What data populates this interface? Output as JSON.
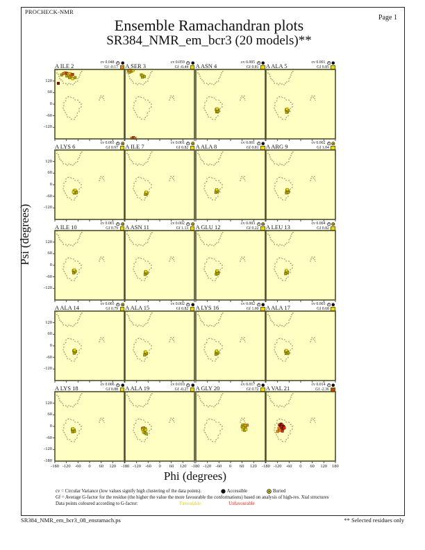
{
  "page": {
    "app": "PROCHECK-NMR",
    "page_label": "Page 1",
    "title": "Ensemble Ramachandran plots",
    "subtitle": "SR384_NMR_em_bcr3 (20 models)**",
    "footer_left": "SR384_NMR_em_bcr3_08_ensramach.ps",
    "footer_right": "** Selected residues only"
  },
  "axes": {
    "xlabel": "Phi (degrees)",
    "ylabel": "Psi (degrees)",
    "x_ticks": [
      -180,
      -120,
      -60,
      0,
      60,
      120
    ],
    "x_end_tick": 180,
    "y_ticks": [
      120,
      60,
      0,
      -60,
      -120
    ],
    "y_end_tick": -180
  },
  "legend": {
    "line1": "cv = Circular Variance (low values signify high clustering of the data points).",
    "accessible_label": "Accessible",
    "buried_label": "Buried",
    "line2": "Gf = Average G-factor for the residue (the higher the value the more favourable the conformations)  based on analysis of high-res. Xtal structures",
    "line3_prefix": "Data points coloured according to G-factor:",
    "favourable_label": "Favourable",
    "unfavourable_label": "Unfavourable"
  },
  "colors": {
    "plot_bg": "#ffffc4",
    "plot_border": "#4e4e28",
    "contour": "#6e6e48",
    "favourable_square": "#f0dc00",
    "mid_square": "#e8821e",
    "unfavourable_square": "#d2351a",
    "point_palette": {
      "f1": {
        "fill": "#f0dc00",
        "stroke": "#8a7d00"
      },
      "f2": {
        "fill": "#b3a800",
        "stroke": "#6d6400"
      },
      "u1": {
        "fill": "#e8821e",
        "stroke": "#9c4f00"
      },
      "u2": {
        "fill": "#d2351a",
        "stroke": "#7e1c08"
      },
      "u3": {
        "fill": "#8f1208",
        "stroke": "#55070a"
      }
    }
  },
  "chart_data": {
    "type": "scatter",
    "phi_range": [
      -180,
      180
    ],
    "psi_range": [
      -180,
      180
    ],
    "grid": {
      "rows": 5,
      "cols": 4
    },
    "subplots": [
      {
        "label": "A ILE 2",
        "cv": "0.048",
        "gf": "-0.17",
        "access": "accessible",
        "gf_color": "mid",
        "points": [
          [
            -145,
            152,
            "f2"
          ],
          [
            -136,
            158,
            "u1"
          ],
          [
            -127,
            162,
            "u1"
          ],
          [
            -118,
            160,
            "u2"
          ],
          [
            -110,
            154,
            "f1"
          ],
          [
            -102,
            158,
            "f1"
          ],
          [
            -95,
            150,
            "u1"
          ],
          [
            -88,
            154,
            "u2"
          ],
          [
            -96,
            142,
            "u1"
          ],
          [
            -118,
            146,
            "f2"
          ],
          [
            -104,
            138,
            "f2"
          ],
          [
            -88,
            132,
            "f1"
          ],
          [
            -75,
            138,
            "f2"
          ],
          [
            -162,
            108,
            "u3"
          ]
        ]
      },
      {
        "label": "A SER 3",
        "cv": "0.059",
        "gf": "-0.44",
        "access": "accessible",
        "gf_color": "favourable",
        "points": [
          [
            -163,
            174,
            "u1"
          ],
          [
            -154,
            177,
            "f1"
          ],
          [
            -146,
            171,
            "u1"
          ],
          [
            -156,
            166,
            "f2"
          ],
          [
            -138,
            175,
            "f1"
          ],
          [
            -95,
            152,
            "f2"
          ],
          [
            -87,
            148,
            "f1"
          ],
          [
            -80,
            143,
            "f2"
          ],
          [
            -90,
            140,
            "f2"
          ],
          [
            -145,
            -176,
            "u1"
          ],
          [
            -136,
            -173,
            "u2"
          ],
          [
            -128,
            -177,
            "u1"
          ]
        ]
      },
      {
        "label": "A ASN 4",
        "cv": "0.005",
        "gf": "0.81",
        "access": "accessible",
        "gf_color": "favourable",
        "points": [
          [
            -74,
            -28,
            "f2"
          ],
          [
            -68,
            -34,
            "f1"
          ],
          [
            -72,
            -40,
            "f2"
          ],
          [
            -64,
            -31,
            "f2"
          ],
          [
            -70,
            -24,
            "f1"
          ],
          [
            -66,
            -38,
            "f2"
          ]
        ]
      },
      {
        "label": "A ALA 5",
        "cv": "0.001",
        "gf": "0.85",
        "access": "accessible",
        "gf_color": "favourable",
        "points": [
          [
            -75,
            -30,
            "f2"
          ],
          [
            -69,
            -36,
            "f1"
          ],
          [
            -73,
            -42,
            "f2"
          ],
          [
            -65,
            -33,
            "f2"
          ],
          [
            -71,
            -26,
            "f1"
          ]
        ]
      },
      {
        "label": "A LYS 6",
        "cv": "0.003",
        "gf": "0.97",
        "access": "buried",
        "gf_color": "favourable",
        "points": [
          [
            -80,
            -32,
            "f2"
          ],
          [
            -74,
            -38,
            "f1"
          ],
          [
            -78,
            -44,
            "f2"
          ],
          [
            -70,
            -35,
            "f2"
          ],
          [
            -76,
            -28,
            "f1"
          ],
          [
            -68,
            -41,
            "f2"
          ],
          [
            -84,
            -38,
            "f1"
          ]
        ]
      },
      {
        "label": "A ILE 7",
        "cv": "0.001",
        "gf": "0.82",
        "access": "buried",
        "gf_color": "favourable",
        "points": [
          [
            -72,
            -42,
            "f2"
          ],
          [
            -68,
            -48,
            "f1"
          ],
          [
            -74,
            -50,
            "f2"
          ],
          [
            -66,
            -44,
            "f2"
          ],
          [
            -70,
            -38,
            "f1"
          ]
        ]
      },
      {
        "label": "A ALA 8",
        "cv": "0.001",
        "gf": "0.81",
        "access": "accessible",
        "gf_color": "favourable",
        "points": [
          [
            -74,
            -30,
            "f2"
          ],
          [
            -70,
            -36,
            "f1"
          ],
          [
            -76,
            -40,
            "f2"
          ],
          [
            -66,
            -33,
            "f2"
          ],
          [
            -72,
            -26,
            "f1"
          ]
        ]
      },
      {
        "label": "A ARG 9",
        "cv": "0.002",
        "gf": "1.04",
        "access": "buried",
        "gf_color": "favourable",
        "points": [
          [
            -72,
            -30,
            "f2"
          ],
          [
            -68,
            -36,
            "f1"
          ],
          [
            -74,
            -42,
            "f2"
          ],
          [
            -64,
            -33,
            "f2"
          ],
          [
            -70,
            -25,
            "f1"
          ],
          [
            -66,
            -40,
            "f2"
          ]
        ]
      },
      {
        "label": "A ILE 10",
        "cv": "0.001",
        "gf": "0.79",
        "access": "buried",
        "gf_color": "favourable",
        "points": [
          [
            -84,
            -28,
            "f2"
          ],
          [
            -78,
            -34,
            "f1"
          ],
          [
            -82,
            -40,
            "f2"
          ],
          [
            -74,
            -31,
            "f2"
          ],
          [
            -80,
            -24,
            "f1"
          ]
        ]
      },
      {
        "label": "A ASN 11",
        "cv": "0.002",
        "gf": "1.13",
        "access": "buried",
        "gf_color": "favourable",
        "points": [
          [
            -74,
            -36,
            "f2"
          ],
          [
            -70,
            -42,
            "f1"
          ],
          [
            -76,
            -48,
            "f2"
          ],
          [
            -66,
            -39,
            "f2"
          ],
          [
            -72,
            -32,
            "f1"
          ]
        ]
      },
      {
        "label": "A GLU 12",
        "cv": "0.003",
        "gf": "0.22",
        "access": "buried",
        "gf_color": "favourable",
        "points": [
          [
            -72,
            -34,
            "f2"
          ],
          [
            -68,
            -40,
            "f1"
          ],
          [
            -74,
            -46,
            "f2"
          ],
          [
            -64,
            -37,
            "f2"
          ],
          [
            -70,
            -29,
            "f1"
          ],
          [
            -66,
            -44,
            "f2"
          ]
        ]
      },
      {
        "label": "A LEU 13",
        "cv": "0.004",
        "gf": "0.82",
        "access": "buried",
        "gf_color": "favourable",
        "points": [
          [
            -76,
            -32,
            "f2"
          ],
          [
            -72,
            -38,
            "f1"
          ],
          [
            -78,
            -44,
            "f2"
          ],
          [
            -68,
            -35,
            "f2"
          ],
          [
            -74,
            -27,
            "f1"
          ]
        ]
      },
      {
        "label": "A ALA 14",
        "cv": "0.003",
        "gf": "0.79",
        "access": "buried",
        "gf_color": "favourable",
        "points": [
          [
            -82,
            -26,
            "f2"
          ],
          [
            -76,
            -32,
            "f1"
          ],
          [
            -80,
            -38,
            "f2"
          ],
          [
            -72,
            -29,
            "f2"
          ],
          [
            -78,
            -22,
            "f1"
          ]
        ]
      },
      {
        "label": "A ALA 15",
        "cv": "0.002",
        "gf": "0.82",
        "access": "accessible",
        "gf_color": "favourable",
        "points": [
          [
            -76,
            -36,
            "f2"
          ],
          [
            -72,
            -42,
            "f1"
          ],
          [
            -78,
            -48,
            "f2"
          ],
          [
            -68,
            -39,
            "f2"
          ],
          [
            -74,
            -31,
            "f1"
          ]
        ]
      },
      {
        "label": "A LYS 16",
        "cv": "0.002",
        "gf": "1.00",
        "access": "accessible",
        "gf_color": "favourable",
        "points": [
          [
            -74,
            -32,
            "f2"
          ],
          [
            -70,
            -38,
            "f1"
          ],
          [
            -76,
            -44,
            "f2"
          ],
          [
            -66,
            -35,
            "f2"
          ],
          [
            -72,
            -27,
            "f1"
          ]
        ]
      },
      {
        "label": "A ALA 17",
        "cv": "0.003",
        "gf": "0.68",
        "access": "accessible",
        "gf_color": "favourable",
        "points": [
          [
            -78,
            -28,
            "f2"
          ],
          [
            -72,
            -34,
            "f1"
          ],
          [
            -76,
            -40,
            "f2"
          ],
          [
            -68,
            -31,
            "f2"
          ],
          [
            -74,
            -24,
            "f1"
          ],
          [
            -65,
            -37,
            "f2"
          ]
        ]
      },
      {
        "label": "A LYS 18",
        "cv": "0.006",
        "gf": "0.88",
        "access": "accessible",
        "gf_color": "favourable",
        "points": [
          [
            -90,
            -16,
            "f2"
          ],
          [
            -84,
            -22,
            "f1"
          ],
          [
            -88,
            -28,
            "f2"
          ],
          [
            -80,
            -19,
            "f2"
          ],
          [
            -86,
            -12,
            "f1"
          ],
          [
            -78,
            -26,
            "f2"
          ]
        ]
      },
      {
        "label": "A ALA 19",
        "cv": "0.010",
        "gf": "-0.27",
        "access": "accessible",
        "gf_color": "favourable",
        "points": [
          [
            -90,
            -10,
            "f2"
          ],
          [
            -83,
            -8,
            "u1"
          ],
          [
            -76,
            -12,
            "f2"
          ],
          [
            -88,
            -18,
            "f1"
          ],
          [
            -80,
            -22,
            "f2"
          ],
          [
            -72,
            -18,
            "f1"
          ],
          [
            -84,
            -30,
            "f1"
          ],
          [
            -77,
            -34,
            "f2"
          ],
          [
            -70,
            -38,
            "f2"
          ]
        ]
      },
      {
        "label": "A GLY 20",
        "cv": "0.017",
        "gf": "0.72",
        "access": "accessible",
        "gf_color": "favourable",
        "points": [
          [
            62,
            6,
            "f1"
          ],
          [
            70,
            8,
            "f2"
          ],
          [
            78,
            4,
            "f1"
          ],
          [
            60,
            -2,
            "f2"
          ],
          [
            68,
            -6,
            "f1"
          ],
          [
            76,
            -8,
            "f2"
          ],
          [
            86,
            6,
            "u1"
          ],
          [
            64,
            -16,
            "f1"
          ],
          [
            72,
            -20,
            "f2"
          ],
          [
            80,
            -16,
            "f1"
          ]
        ]
      },
      {
        "label": "A VAL 21",
        "cv": "0.014",
        "gf": "-2.36",
        "access": "accessible",
        "gf_color": "unfavourable",
        "points": [
          [
            -110,
            8,
            "u2"
          ],
          [
            -102,
            12,
            "u3"
          ],
          [
            -95,
            6,
            "u2"
          ],
          [
            -105,
            0,
            "u3"
          ],
          [
            -97,
            -4,
            "u2"
          ],
          [
            -89,
            0,
            "u3"
          ],
          [
            -113,
            -10,
            "u1"
          ],
          [
            -100,
            -14,
            "u2"
          ],
          [
            -92,
            -12,
            "u3"
          ],
          [
            -85,
            -8,
            "u2"
          ],
          [
            -107,
            -20,
            "u1"
          ],
          [
            -95,
            -24,
            "u2"
          ],
          [
            -120,
            -26,
            "u1"
          ]
        ]
      }
    ]
  }
}
